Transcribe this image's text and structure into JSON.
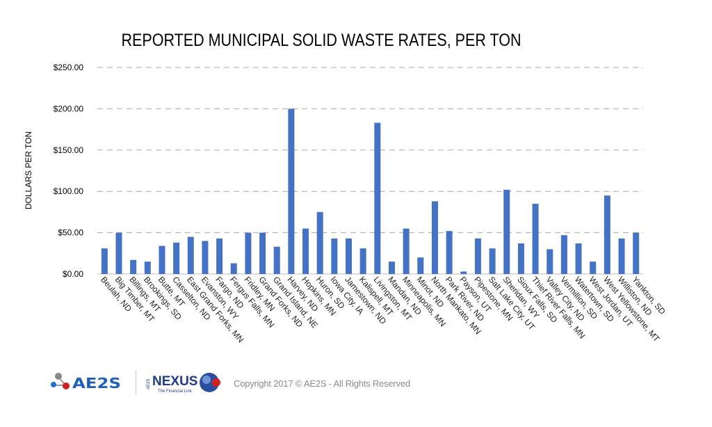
{
  "chart_data": {
    "type": "bar",
    "title": "REPORTED MUNICIPAL SOLID WASTE RATES, PER TON",
    "ylabel": "DOLLARS PER TON",
    "xlabel": "",
    "ylim": [
      0,
      250
    ],
    "yticks": [
      "$0.00",
      "$50.00",
      "$100.00",
      "$150.00",
      "$200.00",
      "$250.00"
    ],
    "ytick_values": [
      0,
      50,
      100,
      150,
      200,
      250
    ],
    "grid": true,
    "bar_color": "#4472C4",
    "categories": [
      "Beulah, ND",
      "Big Timber, MT",
      "Billings, MT",
      "Brookings, SD",
      "Butte, MT",
      "Casselton, ND",
      "East Grand Forks, MN",
      "Evanston, WY",
      "Fargo, ND",
      "Fergus Falls, MN",
      "Fridley, MN",
      "Grand Forks, ND",
      "Grand Island, NE",
      "Harvey, ND",
      "Hopkins, MN",
      "Huron, SD",
      "Iowa City, IA",
      "Jamestown, ND",
      "Kalispell, MT",
      "Livingston, MT",
      "Mandan, ND",
      "Minneapolis, MN",
      "Minot, ND",
      "North Mankato, MN",
      "Park River, ND",
      "Payson, UT",
      "Pipestone, MN",
      "Salt Lake City, UT",
      "Sheridan, WY",
      "Sioux Falls, SD",
      "Thief River Falls, MN",
      "Valley City, ND",
      "Vermillion, SD",
      "Watertown, SD",
      "West Jordan, UT",
      "West Yellowstone, MT",
      "Williston, ND",
      "Yankton, SD"
    ],
    "values": [
      31,
      50,
      17,
      15,
      34,
      38,
      45,
      40,
      43,
      13,
      50,
      50,
      33,
      200,
      55,
      75,
      43,
      43,
      31,
      183,
      15,
      55,
      20,
      88,
      52,
      3,
      43,
      31,
      102,
      37,
      85,
      30,
      47,
      37,
      15,
      95,
      43,
      50
    ]
  },
  "footer": {
    "logo_ae2s": "AE2S",
    "logo_nexus": "NEXUS",
    "logo_nexus_side": "AE2S",
    "logo_nexus_tagline": "The Financial Link",
    "copyright": "Copyright 2017 © AE2S - All Rights Reserved"
  }
}
